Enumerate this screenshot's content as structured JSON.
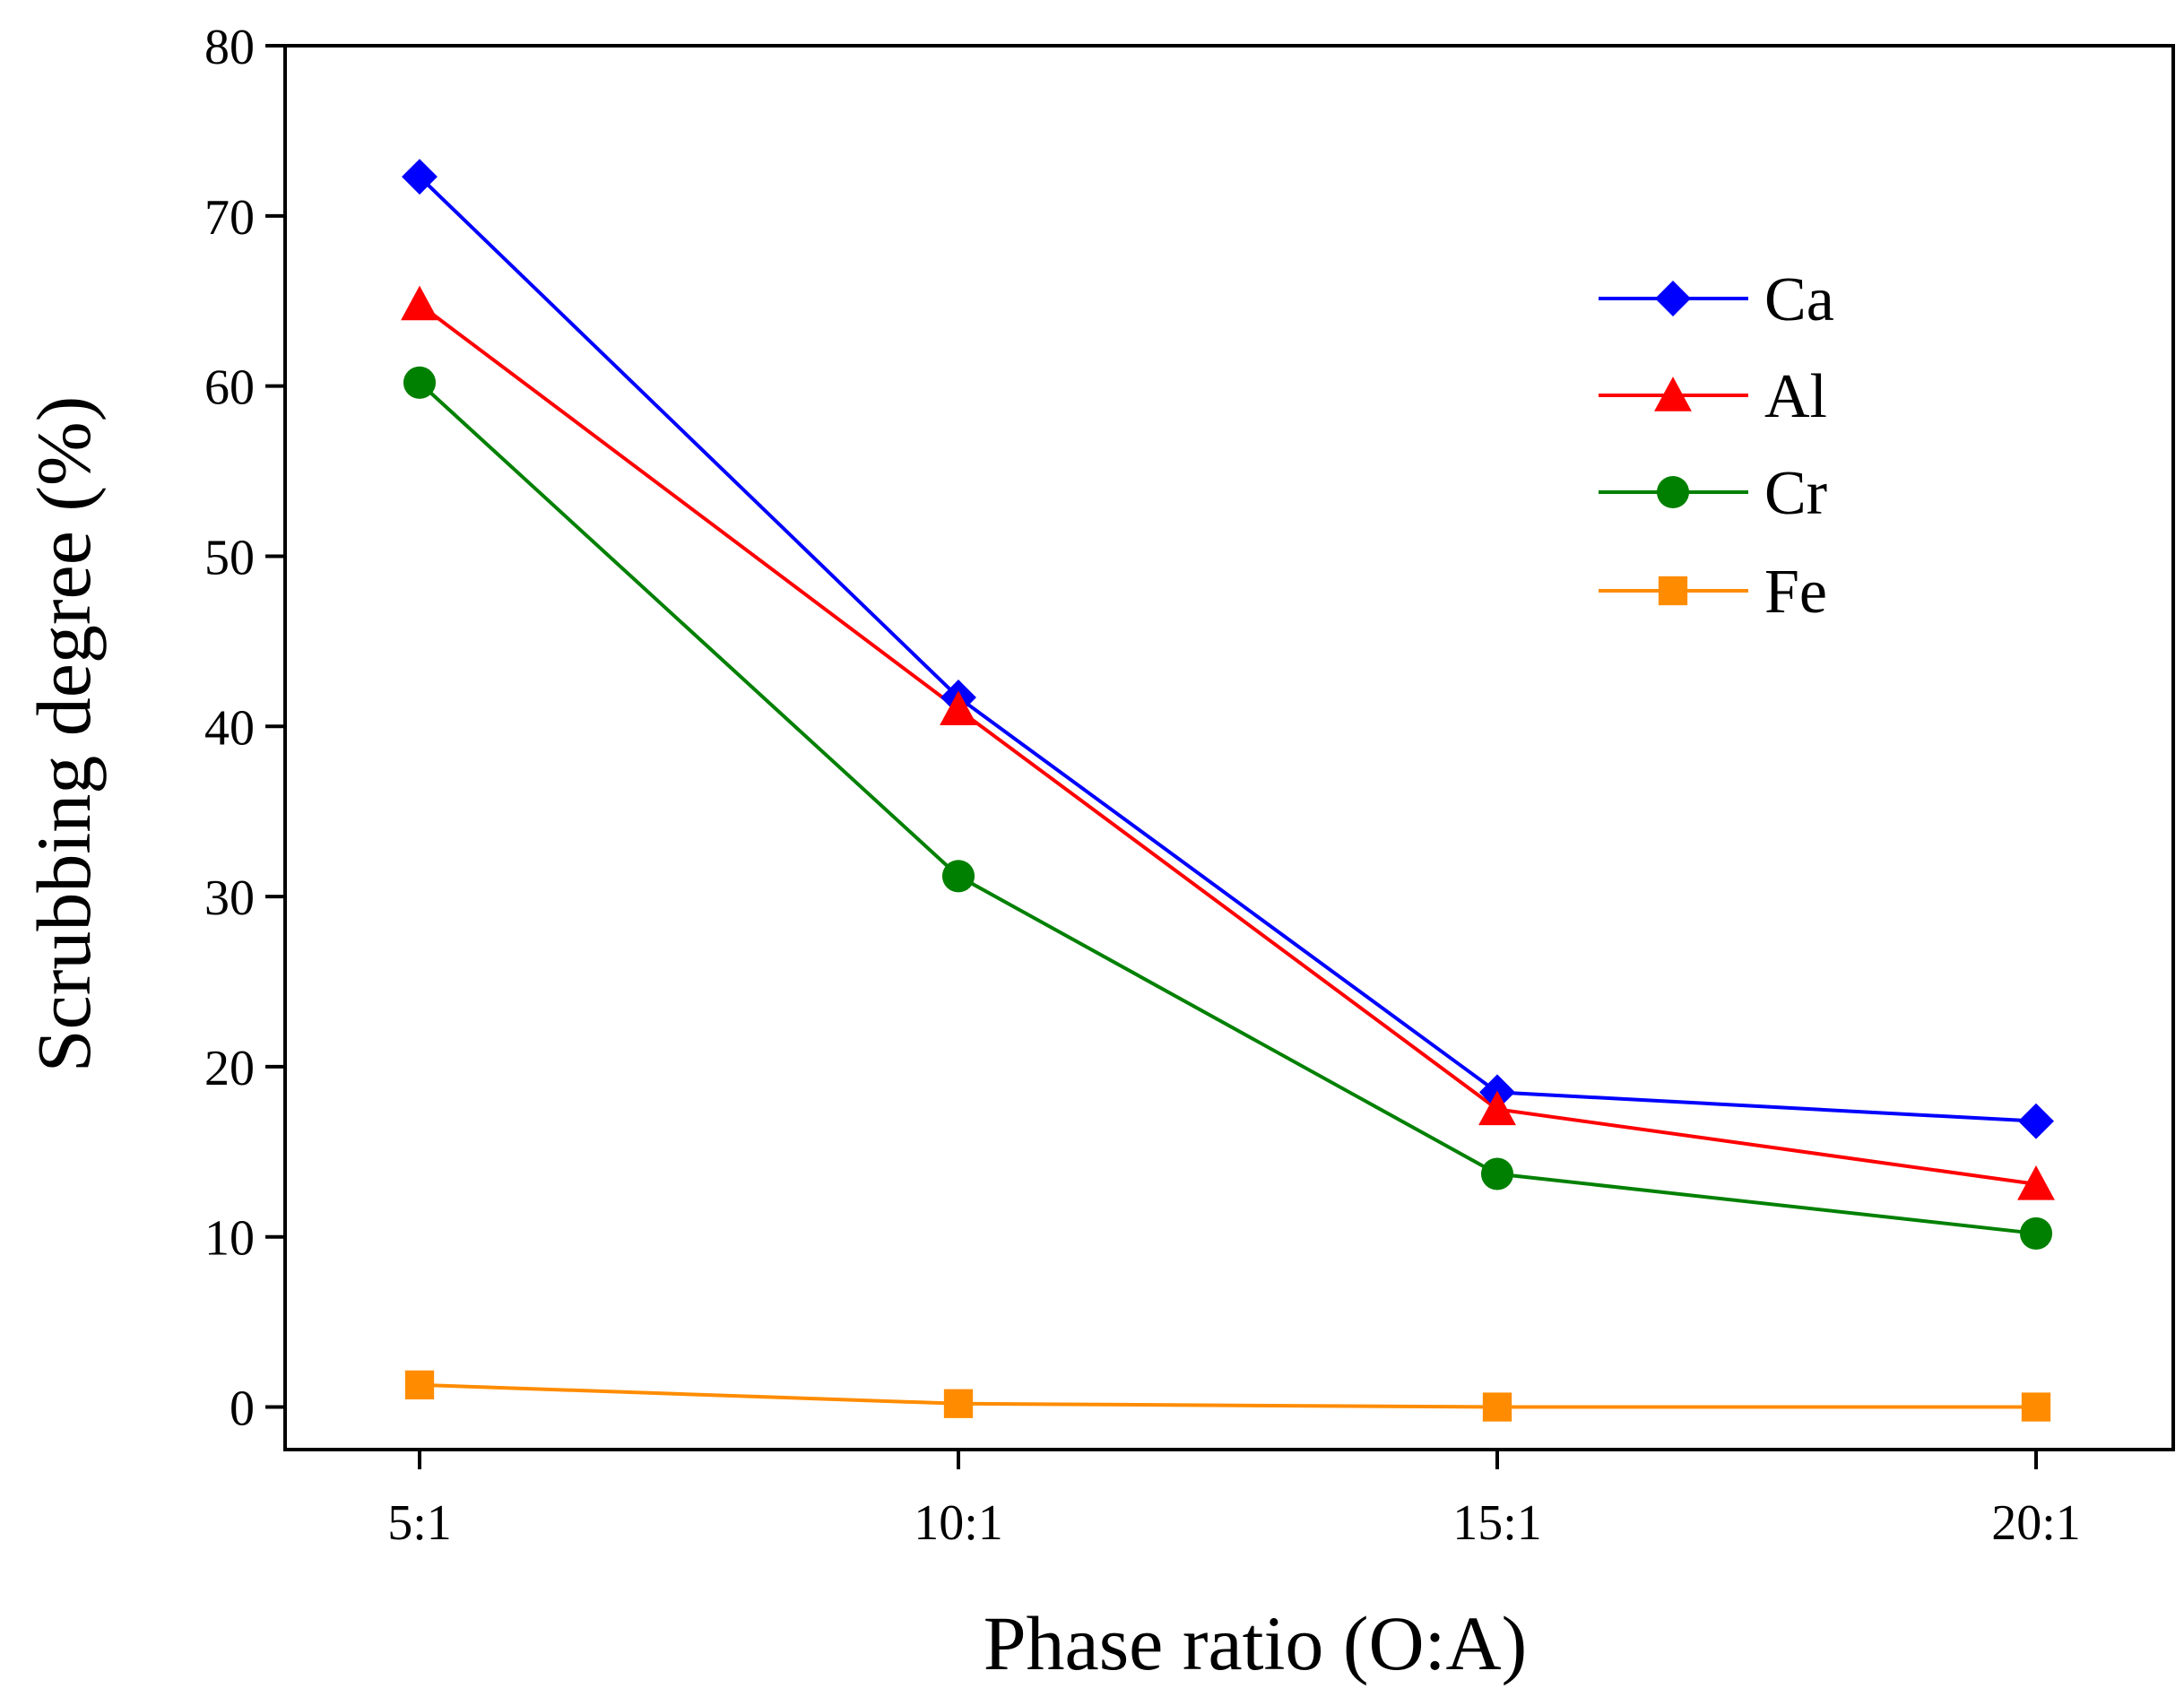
{
  "chart_data": {
    "type": "line",
    "title": "",
    "xlabel": "Phase ratio (O:A)",
    "ylabel": "Scrubbing degree (%)",
    "categories": [
      "5:1",
      "10:1",
      "15:1",
      "20:1"
    ],
    "ylim": [
      -2.5,
      80
    ],
    "yticks": [
      0,
      10,
      20,
      30,
      40,
      50,
      60,
      70,
      80
    ],
    "ytick_labels": [
      "0",
      "10",
      "20",
      "30",
      "40",
      "50",
      "60",
      "70",
      "80"
    ],
    "grid": false,
    "legend_position": "top-right",
    "series": [
      {
        "name": "Ca",
        "marker": "diamond",
        "color": "#0000ff",
        "values": [
          72.3,
          41.7,
          18.5,
          16.8
        ]
      },
      {
        "name": "Al",
        "marker": "triangle",
        "color": "#ff0000",
        "values": [
          64.8,
          41.0,
          17.5,
          13.1
        ]
      },
      {
        "name": "Cr",
        "marker": "circle",
        "color": "#008000",
        "values": [
          60.2,
          31.2,
          13.7,
          10.2
        ]
      },
      {
        "name": "Fe",
        "marker": "square",
        "color": "#ff8c00",
        "values": [
          1.3,
          0.2,
          0.0,
          0.0
        ]
      }
    ]
  }
}
